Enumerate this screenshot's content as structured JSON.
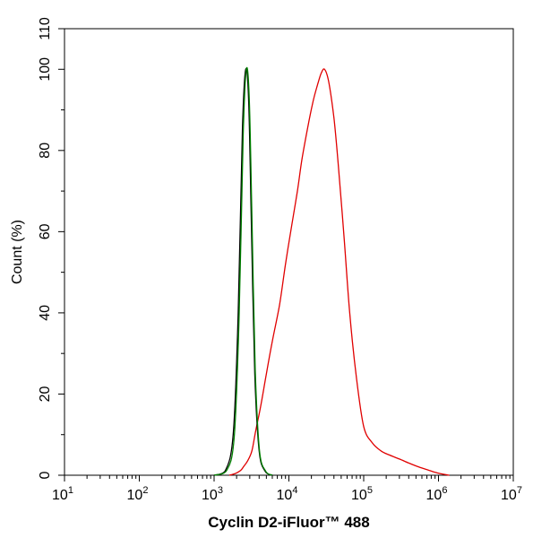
{
  "chart_data": {
    "type": "line",
    "title": "",
    "xlabel": "Cyclin D2-iFluor™ 488",
    "ylabel": "Count  (%)",
    "xscale": "log",
    "xlim": [
      10,
      10000000
    ],
    "ylim": [
      0,
      110
    ],
    "grid": false,
    "x_ticks": [
      {
        "base": "10",
        "exp": "1"
      },
      {
        "base": "10",
        "exp": "2"
      },
      {
        "base": "10",
        "exp": "3"
      },
      {
        "base": "10",
        "exp": "4"
      },
      {
        "base": "10",
        "exp": "5"
      },
      {
        "base": "10",
        "exp": "6"
      },
      {
        "base": "10",
        "exp": "7"
      }
    ],
    "y_ticks": [
      "0",
      "20",
      "40",
      "60",
      "80",
      "100",
      "110"
    ],
    "series": [
      {
        "color": "#e00000",
        "x": [
          1600,
          1900,
          2100,
          2300,
          2500,
          2800,
          3200,
          3600,
          4200,
          5000,
          6000,
          7500,
          9000,
          11000,
          13000,
          15000,
          18000,
          21000,
          24000,
          27000,
          30000,
          34000,
          40000,
          46000,
          55000,
          65000,
          80000,
          100000,
          130000,
          170000,
          220000,
          300000,
          400000,
          550000,
          750000,
          1000000,
          1400000
        ],
        "y": [
          0,
          0.4,
          0.8,
          1.3,
          2.2,
          3.5,
          6,
          11,
          17,
          25,
          33,
          42,
          52,
          62,
          70,
          78,
          86,
          92,
          96,
          99,
          100,
          97,
          88,
          76,
          58,
          40,
          24,
          12,
          8,
          6,
          5,
          4,
          3,
          2,
          1.2,
          0.5,
          0
        ]
      },
      {
        "color": "#000000",
        "x": [
          1000,
          1400,
          1800,
          2100,
          2400,
          2650,
          2900,
          3150,
          3500,
          4000,
          4800,
          6000
        ],
        "y": [
          0,
          1,
          10,
          40,
          86,
          100,
          92,
          62,
          25,
          6,
          1,
          0
        ]
      },
      {
        "color": "#008000",
        "x": [
          1000,
          1450,
          1850,
          2150,
          2450,
          2700,
          2950,
          3200,
          3550,
          4050,
          4900,
          6000
        ],
        "y": [
          0,
          1,
          9,
          38,
          84,
          100,
          93,
          64,
          26,
          6,
          1,
          0
        ]
      }
    ]
  }
}
